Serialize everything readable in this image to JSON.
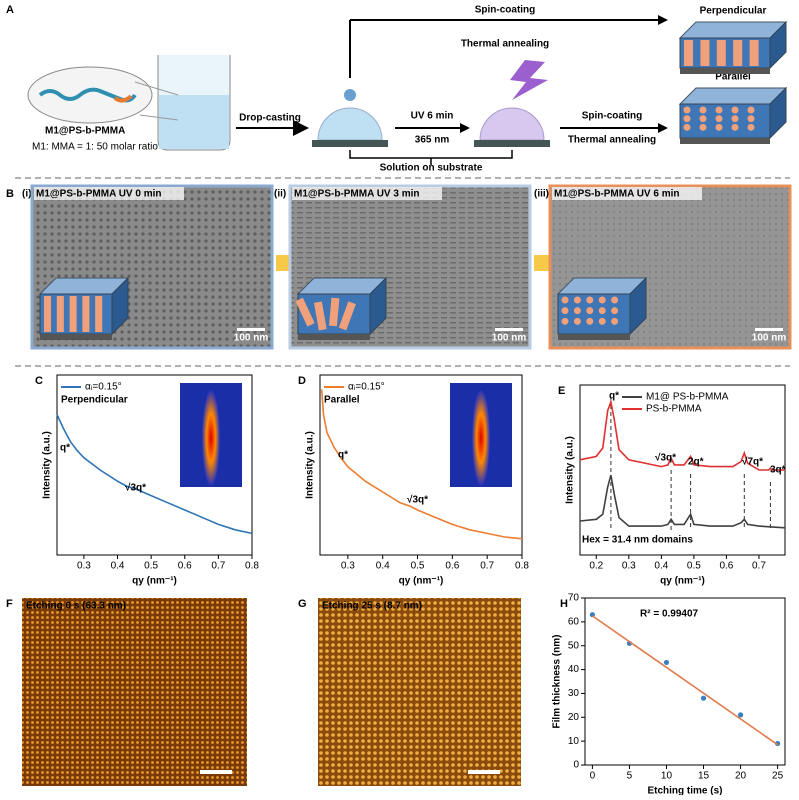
{
  "panel_a": {
    "label": "A",
    "molecule": "M1@PS-b-PMMA",
    "ratio": "M1: MMA = 1: 50 molar ratio",
    "drop": "Drop-casting",
    "top_step1": "Spin-coating",
    "top_step2": "Thermal annealing",
    "perpendicular": "Perpendicular",
    "parallel": "Parallel",
    "uv": "UV 6 min",
    "wavelength": "365 nm",
    "bottom_step1": "Spin-coating",
    "bottom_step2": "Thermal annealing",
    "substrate": "Solution on substrate"
  },
  "panel_b": {
    "label": "B",
    "images": [
      {
        "index": "(i)",
        "title": "M1@PS-b-PMMA UV 0 min",
        "scale": "100 nm"
      },
      {
        "index": "(ii)",
        "title": "M1@PS-b-PMMA  UV 3 min",
        "scale": "100 nm"
      },
      {
        "index": "(iii)",
        "title": "M1@PS-b-PMMA  UV 6 min",
        "scale": "100 nm"
      }
    ]
  },
  "panel_f": {
    "label": "F",
    "title": "Etching 0 s (63.3 nm)"
  },
  "panel_g": {
    "label": "G",
    "title": "Etching 25 s (8.7 nm)"
  },
  "chart_data": [
    {
      "label": "C",
      "type": "line",
      "xlabel": "qy (nm⁻¹)",
      "ylabel": "Intensity (a.u.)",
      "subtitle": "Perpendicular",
      "annotations": [
        "q*",
        "√3q*"
      ],
      "xlim": [
        0.22,
        0.8
      ],
      "xticks": [
        0.3,
        0.4,
        0.5,
        0.6,
        0.7,
        0.8
      ],
      "ylim": [
        0,
        1
      ],
      "series": [
        {
          "name": "αᵢ=0.15°",
          "color": "#2e75b6",
          "x": [
            0.22,
            0.24,
            0.26,
            0.28,
            0.3,
            0.35,
            0.4,
            0.43,
            0.45,
            0.5,
            0.55,
            0.6,
            0.65,
            0.7,
            0.75,
            0.8
          ],
          "values": [
            0.78,
            0.7,
            0.63,
            0.58,
            0.54,
            0.47,
            0.41,
            0.38,
            0.37,
            0.33,
            0.29,
            0.25,
            0.21,
            0.17,
            0.14,
            0.12
          ]
        }
      ]
    },
    {
      "label": "D",
      "type": "line",
      "xlabel": "qy (nm⁻¹)",
      "ylabel": "Intensity (a.u.)",
      "subtitle": "Parallel",
      "annotations": [
        "q*",
        "√3q*"
      ],
      "xlim": [
        0.22,
        0.8
      ],
      "xticks": [
        0.3,
        0.4,
        0.5,
        0.6,
        0.7,
        0.8
      ],
      "ylim": [
        0,
        1
      ],
      "series": [
        {
          "name": "αᵢ=0.15°",
          "color": "#ed7d31",
          "x": [
            0.225,
            0.23,
            0.24,
            0.26,
            0.28,
            0.3,
            0.35,
            0.4,
            0.45,
            0.48,
            0.5,
            0.55,
            0.6,
            0.65,
            0.7,
            0.75,
            0.8
          ],
          "values": [
            0.92,
            0.78,
            0.68,
            0.6,
            0.54,
            0.49,
            0.41,
            0.35,
            0.29,
            0.27,
            0.25,
            0.21,
            0.17,
            0.14,
            0.12,
            0.1,
            0.09
          ]
        }
      ]
    },
    {
      "label": "E",
      "type": "line",
      "xlabel": "qy (nm⁻¹)",
      "ylabel": "Intensity (a.u.)",
      "annotations": [
        "q*",
        "√3q*",
        "2q*",
        "√7q*",
        "3q*",
        "Hex = 31.4 nm domains"
      ],
      "xlim": [
        0.15,
        0.78
      ],
      "xticks": [
        0.2,
        0.3,
        0.4,
        0.5,
        0.6,
        0.7
      ],
      "ylim": [
        0,
        1
      ],
      "series": [
        {
          "name": "M1@ PS-b-PMMA",
          "color": "#404040",
          "x": [
            0.15,
            0.2,
            0.22,
            0.235,
            0.245,
            0.255,
            0.27,
            0.3,
            0.4,
            0.42,
            0.43,
            0.44,
            0.47,
            0.49,
            0.5,
            0.55,
            0.62,
            0.645,
            0.655,
            0.665,
            0.7,
            0.78
          ],
          "values": [
            0.2,
            0.21,
            0.24,
            0.4,
            0.47,
            0.36,
            0.22,
            0.17,
            0.17,
            0.18,
            0.21,
            0.18,
            0.18,
            0.24,
            0.18,
            0.17,
            0.17,
            0.19,
            0.21,
            0.18,
            0.17,
            0.16
          ]
        },
        {
          "name": "PS-b-PMMA",
          "color": "#e03030",
          "x": [
            0.15,
            0.2,
            0.22,
            0.235,
            0.245,
            0.255,
            0.27,
            0.3,
            0.4,
            0.42,
            0.43,
            0.44,
            0.47,
            0.49,
            0.5,
            0.55,
            0.62,
            0.645,
            0.655,
            0.665,
            0.7,
            0.73,
            0.735,
            0.74,
            0.78
          ],
          "values": [
            0.56,
            0.58,
            0.63,
            0.85,
            0.9,
            0.8,
            0.62,
            0.56,
            0.52,
            0.53,
            0.57,
            0.53,
            0.53,
            0.58,
            0.53,
            0.52,
            0.52,
            0.55,
            0.6,
            0.54,
            0.5,
            0.5,
            0.51,
            0.5,
            0.5
          ]
        }
      ]
    },
    {
      "label": "H",
      "type": "scatter",
      "xlabel": "Etching time (s)",
      "ylabel": "Film thickness (nm)",
      "annotations": [
        "R² = 0.99407"
      ],
      "xlim": [
        -1,
        26
      ],
      "xticks": [
        0,
        5,
        10,
        15,
        20,
        25
      ],
      "ylim": [
        0,
        70
      ],
      "yticks": [
        0,
        10,
        20,
        30,
        40,
        50,
        60,
        70
      ],
      "series": [
        {
          "mode": "markers",
          "color": "#3a7fc1",
          "x": [
            0,
            5,
            10,
            15,
            20,
            25
          ],
          "values": [
            63,
            51,
            43,
            28,
            21,
            9
          ]
        },
        {
          "mode": "line",
          "color": "#e07a4a",
          "x": [
            0,
            25
          ],
          "values": [
            62.5,
            8.5
          ]
        }
      ]
    }
  ]
}
